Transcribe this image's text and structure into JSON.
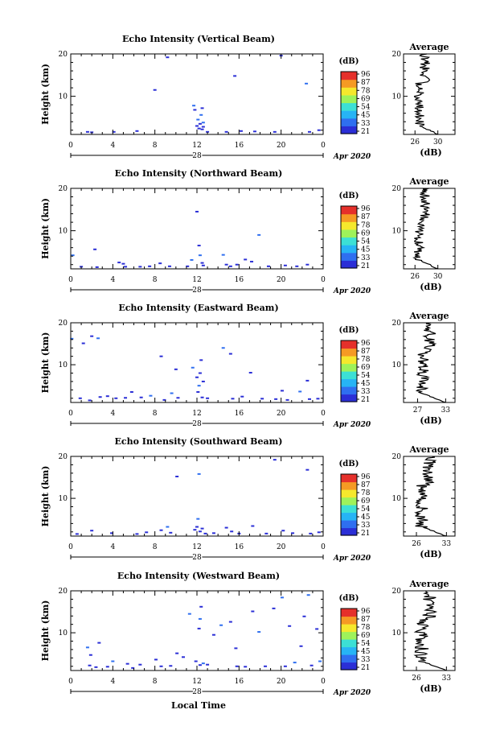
{
  "figure": {
    "x_axis_label": "Local Time",
    "date_day": "28",
    "date_month_year": "Apr 2020",
    "y_axis_label": "Height (km)",
    "colorbar_unit": "(dB)",
    "colorbar_ticks": [
      "96",
      "87",
      "78",
      "69",
      "54",
      "45",
      "33",
      "21"
    ],
    "average_title": "Average",
    "average_unit": "(dB)",
    "colormap": [
      "#2b2fd6",
      "#2f6ff0",
      "#27b4f5",
      "#3ce0d5",
      "#9ef25a",
      "#f5e82d",
      "#f59a24",
      "#e5302b"
    ]
  },
  "chart_data": [
    {
      "type": "heatmap",
      "title": "Echo Intensity (Vertical Beam)",
      "x": {
        "ticks": [
          "0",
          "4",
          "8",
          "12",
          "16",
          "20",
          "0"
        ],
        "range": [
          0,
          24
        ],
        "unit": "hour"
      },
      "y": {
        "ticks": [
          "20",
          "10"
        ],
        "range": [
          1,
          20
        ],
        "unit": "km"
      },
      "echoes": [
        [
          1.6,
          1.6
        ],
        [
          2.0,
          1.5
        ],
        [
          4.1,
          1.6
        ],
        [
          6.3,
          1.8
        ],
        [
          9.2,
          19.2
        ],
        [
          8.0,
          11.5
        ],
        [
          11.7,
          7.8
        ],
        [
          11.8,
          6.8
        ],
        [
          12.0,
          3.0
        ],
        [
          12.1,
          4.5
        ],
        [
          12.2,
          2.4
        ],
        [
          12.3,
          3.5
        ],
        [
          12.4,
          5.6
        ],
        [
          12.5,
          2.2
        ],
        [
          12.5,
          7.2
        ],
        [
          12.6,
          3.8
        ],
        [
          12.6,
          2.8
        ],
        [
          13.0,
          1.6
        ],
        [
          14.8,
          1.6
        ],
        [
          15.6,
          14.8
        ],
        [
          16.2,
          1.8
        ],
        [
          17.5,
          1.7
        ],
        [
          19.4,
          1.6
        ],
        [
          20.0,
          19.6
        ],
        [
          22.4,
          13.0
        ],
        [
          22.7,
          1.6
        ],
        [
          23.6,
          2.0
        ]
      ],
      "colorbar": {
        "min": 21,
        "max": 96
      },
      "average": {
        "ticks": [
          "26",
          "30"
        ],
        "range": [
          24,
          33
        ],
        "xlabel": "(dB)"
      }
    },
    {
      "type": "heatmap",
      "title": "Echo Intensity (Northward Beam)",
      "x": {
        "ticks": [
          "0",
          "4",
          "8",
          "12",
          "16",
          "20",
          "0"
        ],
        "range": [
          0,
          24
        ],
        "unit": "hour"
      },
      "y": {
        "ticks": [
          "20",
          "10"
        ],
        "range": [
          1,
          20
        ],
        "unit": "km"
      },
      "echoes": [
        [
          0.2,
          4.2
        ],
        [
          1.0,
          1.5
        ],
        [
          2.3,
          5.6
        ],
        [
          2.5,
          1.4
        ],
        [
          4.6,
          2.5
        ],
        [
          5.0,
          2.2
        ],
        [
          5.2,
          1.5
        ],
        [
          6.6,
          1.5
        ],
        [
          7.5,
          1.6
        ],
        [
          8.5,
          2.3
        ],
        [
          9.4,
          1.6
        ],
        [
          11.1,
          1.6
        ],
        [
          11.5,
          3.1
        ],
        [
          12.0,
          14.5
        ],
        [
          12.2,
          6.5
        ],
        [
          12.3,
          4.2
        ],
        [
          12.5,
          2.4
        ],
        [
          12.6,
          1.8
        ],
        [
          14.5,
          4.3
        ],
        [
          14.8,
          2.0
        ],
        [
          15.2,
          1.6
        ],
        [
          15.8,
          2.0
        ],
        [
          16.6,
          3.2
        ],
        [
          17.2,
          2.7
        ],
        [
          17.9,
          9.0
        ],
        [
          18.8,
          1.6
        ],
        [
          20.4,
          1.8
        ],
        [
          21.5,
          1.6
        ],
        [
          22.5,
          2.0
        ]
      ],
      "colorbar": {
        "min": 21,
        "max": 96
      },
      "average": {
        "ticks": [
          "26",
          "30"
        ],
        "range": [
          24,
          33
        ],
        "xlabel": "(dB)"
      }
    },
    {
      "type": "heatmap",
      "title": "Echo Intensity (Eastward Beam)",
      "x": {
        "ticks": [
          "0",
          "4",
          "8",
          "12",
          "16",
          "20",
          "0"
        ],
        "range": [
          0,
          24
        ],
        "unit": "hour"
      },
      "y": {
        "ticks": [
          "20",
          "10"
        ],
        "range": [
          1,
          20
        ],
        "unit": "km"
      },
      "echoes": [
        [
          0.1,
          16.2
        ],
        [
          1.2,
          15.1
        ],
        [
          2.0,
          16.8
        ],
        [
          2.6,
          16.3
        ],
        [
          0.9,
          2.0
        ],
        [
          1.8,
          1.5
        ],
        [
          2.8,
          2.3
        ],
        [
          3.5,
          2.5
        ],
        [
          4.3,
          2.0
        ],
        [
          5.2,
          2.1
        ],
        [
          5.8,
          3.5
        ],
        [
          6.7,
          2.2
        ],
        [
          7.6,
          2.6
        ],
        [
          8.6,
          12.0
        ],
        [
          8.9,
          1.6
        ],
        [
          9.6,
          3.2
        ],
        [
          10.0,
          8.9
        ],
        [
          10.2,
          2.1
        ],
        [
          11.6,
          9.3
        ],
        [
          12.0,
          7.0
        ],
        [
          12.1,
          3.5
        ],
        [
          12.2,
          5.0
        ],
        [
          12.3,
          8.0
        ],
        [
          12.4,
          11.1
        ],
        [
          12.5,
          2.2
        ],
        [
          12.6,
          6.0
        ],
        [
          13.0,
          2.0
        ],
        [
          14.5,
          14.0
        ],
        [
          15.2,
          12.6
        ],
        [
          15.4,
          1.9
        ],
        [
          16.3,
          2.4
        ],
        [
          17.1,
          8.1
        ],
        [
          18.2,
          1.9
        ],
        [
          19.5,
          1.8
        ],
        [
          20.1,
          3.8
        ],
        [
          20.6,
          1.6
        ],
        [
          21.8,
          3.6
        ],
        [
          22.5,
          6.2
        ],
        [
          22.7,
          1.8
        ],
        [
          23.5,
          1.9
        ]
      ],
      "colorbar": {
        "min": 21,
        "max": 96
      },
      "average": {
        "ticks": [
          "27",
          "33"
        ],
        "range": [
          24,
          35
        ],
        "xlabel": "(dB)"
      }
    },
    {
      "type": "heatmap",
      "title": "Echo Intensity (Southward Beam)",
      "x": {
        "ticks": [
          "0",
          "4",
          "8",
          "12",
          "16",
          "20",
          "0"
        ],
        "range": [
          0,
          24
        ],
        "unit": "hour"
      },
      "y": {
        "ticks": [
          "20",
          "10"
        ],
        "range": [
          1,
          20
        ],
        "unit": "km"
      },
      "echoes": [
        [
          0.6,
          1.5
        ],
        [
          2.0,
          2.3
        ],
        [
          3.9,
          1.7
        ],
        [
          6.3,
          1.5
        ],
        [
          7.2,
          1.9
        ],
        [
          8.6,
          2.4
        ],
        [
          9.2,
          3.2
        ],
        [
          9.5,
          1.8
        ],
        [
          10.1,
          15.2
        ],
        [
          12.2,
          15.8
        ],
        [
          11.8,
          2.5
        ],
        [
          12.0,
          3.2
        ],
        [
          12.1,
          5.1
        ],
        [
          12.3,
          2.1
        ],
        [
          12.5,
          2.8
        ],
        [
          12.8,
          1.6
        ],
        [
          13.6,
          1.7
        ],
        [
          14.8,
          3.0
        ],
        [
          15.3,
          2.1
        ],
        [
          16.0,
          1.6
        ],
        [
          17.3,
          3.4
        ],
        [
          18.6,
          1.6
        ],
        [
          19.4,
          19.2
        ],
        [
          20.2,
          2.3
        ],
        [
          21.1,
          1.7
        ],
        [
          22.5,
          16.8
        ],
        [
          22.8,
          1.6
        ],
        [
          23.6,
          1.9
        ]
      ],
      "colorbar": {
        "min": 21,
        "max": 96
      },
      "average": {
        "ticks": [
          "26",
          "33"
        ],
        "range": [
          23,
          35
        ],
        "xlabel": "(dB)"
      }
    },
    {
      "type": "heatmap",
      "title": "Echo Intensity (Westward Beam)",
      "x": {
        "ticks": [
          "0",
          "4",
          "8",
          "12",
          "16",
          "20",
          "0"
        ],
        "range": [
          0,
          24
        ],
        "unit": "hour"
      },
      "y": {
        "ticks": [
          "20",
          "10"
        ],
        "range": [
          1,
          20
        ],
        "unit": "km"
      },
      "echoes": [
        [
          1.6,
          6.5
        ],
        [
          1.9,
          4.7
        ],
        [
          2.7,
          7.6
        ],
        [
          1.8,
          2.2
        ],
        [
          2.4,
          1.8
        ],
        [
          3.5,
          1.9
        ],
        [
          4.0,
          3.2
        ],
        [
          5.4,
          2.6
        ],
        [
          5.9,
          1.6
        ],
        [
          6.6,
          2.4
        ],
        [
          8.1,
          3.6
        ],
        [
          8.6,
          2.0
        ],
        [
          9.5,
          2.1
        ],
        [
          10.1,
          5.1
        ],
        [
          10.7,
          4.2
        ],
        [
          11.3,
          14.5
        ],
        [
          11.9,
          3.2
        ],
        [
          12.2,
          11.0
        ],
        [
          12.3,
          13.3
        ],
        [
          12.4,
          16.2
        ],
        [
          12.3,
          2.3
        ],
        [
          12.6,
          2.7
        ],
        [
          13.0,
          2.4
        ],
        [
          13.6,
          9.5
        ],
        [
          14.3,
          11.8
        ],
        [
          15.2,
          12.6
        ],
        [
          15.7,
          6.3
        ],
        [
          15.8,
          2.0
        ],
        [
          16.6,
          1.9
        ],
        [
          17.3,
          15.1
        ],
        [
          17.9,
          10.2
        ],
        [
          18.5,
          2.0
        ],
        [
          19.3,
          15.8
        ],
        [
          20.1,
          18.4
        ],
        [
          20.4,
          2.0
        ],
        [
          20.8,
          11.6
        ],
        [
          21.3,
          2.9
        ],
        [
          21.9,
          6.8
        ],
        [
          22.2,
          13.9
        ],
        [
          22.6,
          19.0
        ],
        [
          22.9,
          2.2
        ],
        [
          23.4,
          10.9
        ],
        [
          23.7,
          3.2
        ]
      ],
      "colorbar": {
        "min": 21,
        "max": 96
      },
      "average": {
        "ticks": [
          "26",
          "33"
        ],
        "range": [
          23,
          35
        ],
        "xlabel": "(dB)"
      }
    }
  ]
}
